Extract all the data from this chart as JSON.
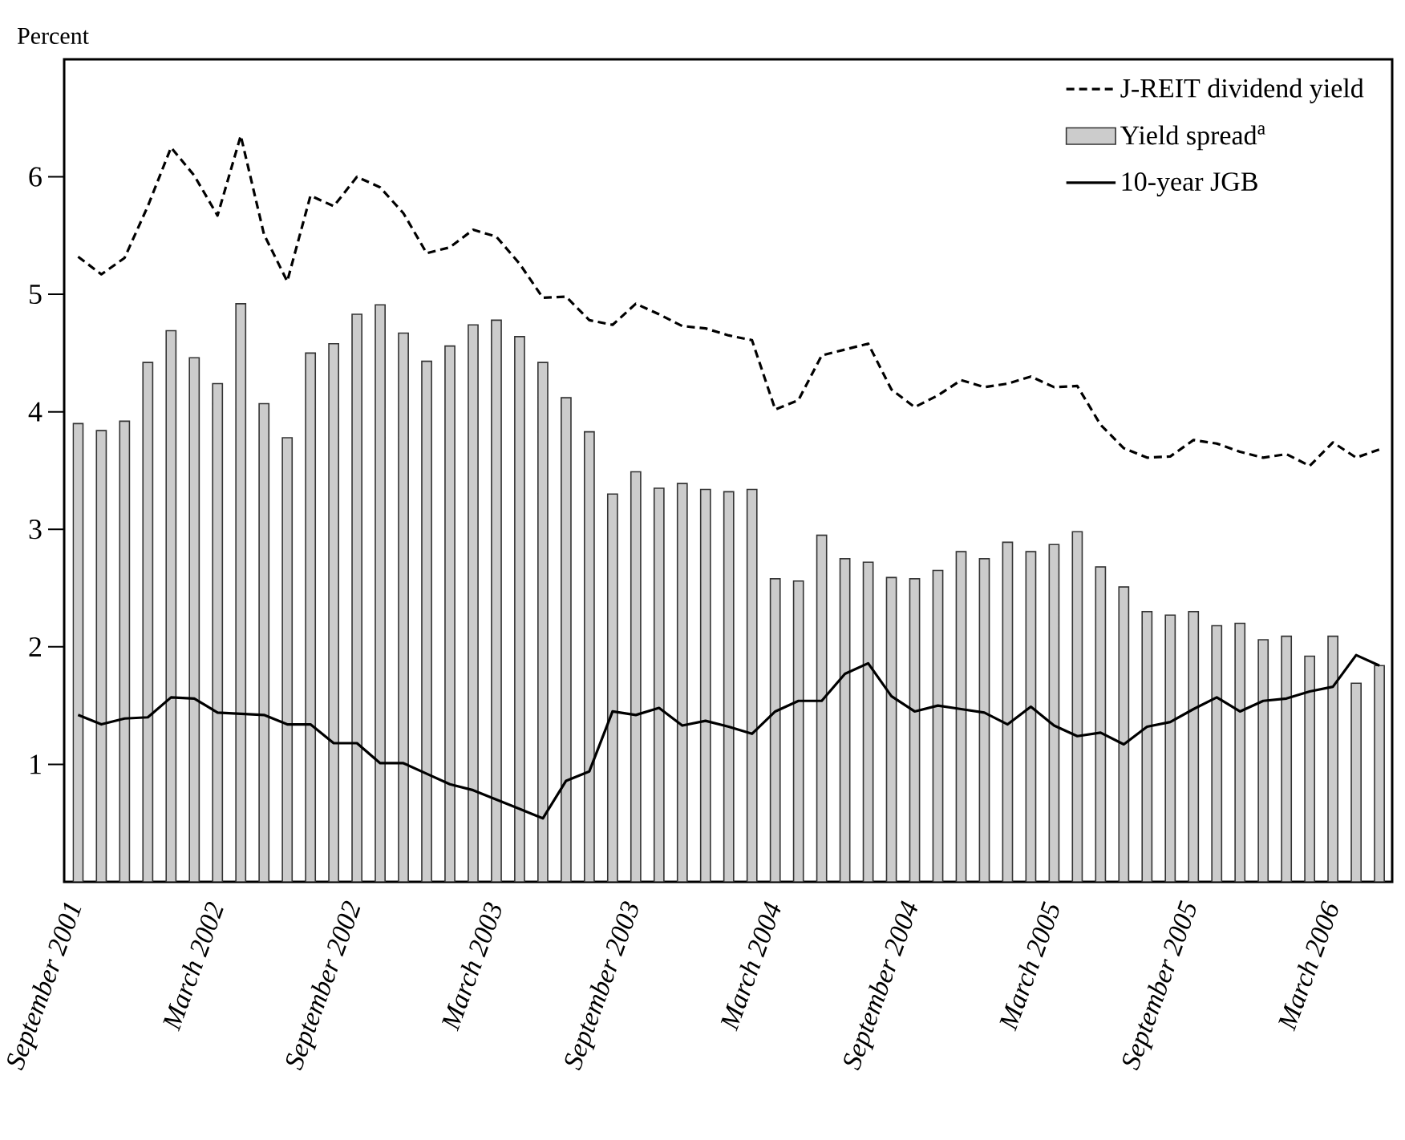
{
  "chart_data": {
    "type": "bar",
    "ylabel": "Percent",
    "categories": [
      "September 2001",
      null,
      null,
      null,
      null,
      null,
      "March 2002",
      null,
      null,
      null,
      null,
      null,
      "September 2002",
      null,
      null,
      null,
      null,
      null,
      "March 2003",
      null,
      null,
      null,
      null,
      null,
      "September 2003",
      null,
      null,
      null,
      null,
      null,
      "March 2004",
      null,
      null,
      null,
      null,
      null,
      "September 2004",
      null,
      null,
      null,
      null,
      null,
      "March 2005",
      null,
      null,
      null,
      null,
      null,
      "September 2005",
      null,
      null,
      null,
      null,
      null,
      "March 2006",
      null,
      null
    ],
    "series": [
      {
        "name": "J-REIT dividend yield",
        "type": "line",
        "line_style": "dashed",
        "color": "#000000",
        "values": [
          5.32,
          5.17,
          5.31,
          5.75,
          6.25,
          6.01,
          5.67,
          6.35,
          5.51,
          5.11,
          5.84,
          5.75,
          6.0,
          5.91,
          5.69,
          5.35,
          5.4,
          5.55,
          5.49,
          5.26,
          4.97,
          4.98,
          4.78,
          4.74,
          4.92,
          4.83,
          4.73,
          4.71,
          4.65,
          4.61,
          4.02,
          4.1,
          4.48,
          4.53,
          4.58,
          4.19,
          4.04,
          4.14,
          4.27,
          4.21,
          4.24,
          4.3,
          4.21,
          4.22,
          3.89,
          3.69,
          3.61,
          3.62,
          3.76,
          3.73,
          3.66,
          3.61,
          3.64,
          3.54,
          3.74,
          3.61,
          3.68
        ]
      },
      {
        "name": "Yield spread$^{a}$",
        "color": "#cccccc",
        "values": [
          3.9,
          3.84,
          3.92,
          4.42,
          4.69,
          4.46,
          4.24,
          4.92,
          4.07,
          3.78,
          4.5,
          4.58,
          4.83,
          4.91,
          4.67,
          4.43,
          4.56,
          4.74,
          4.78,
          4.64,
          4.42,
          4.12,
          3.83,
          3.3,
          3.49,
          3.35,
          3.39,
          3.34,
          3.32,
          3.34,
          2.58,
          2.56,
          2.95,
          2.75,
          2.72,
          2.59,
          2.58,
          2.65,
          2.81,
          2.75,
          2.89,
          2.81,
          2.87,
          2.98,
          2.68,
          2.51,
          2.3,
          2.27,
          2.3,
          2.18,
          2.2,
          2.06,
          2.09,
          1.92,
          2.09,
          1.69,
          1.84
        ]
      },
      {
        "name": "10-year JGB",
        "type": "line",
        "line_style": "solid",
        "color": "#000000",
        "values": [
          1.42,
          1.34,
          1.39,
          1.4,
          1.57,
          1.56,
          1.44,
          1.43,
          1.42,
          1.34,
          1.34,
          1.18,
          1.18,
          1.01,
          1.01,
          0.92,
          0.83,
          0.78,
          0.7,
          0.62,
          0.54,
          0.86,
          0.94,
          1.45,
          1.42,
          1.48,
          1.33,
          1.37,
          1.32,
          1.26,
          1.45,
          1.54,
          1.54,
          1.77,
          1.86,
          1.58,
          1.45,
          1.5,
          1.47,
          1.44,
          1.34,
          1.49,
          1.33,
          1.24,
          1.27,
          1.17,
          1.32,
          1.36,
          1.47,
          1.57,
          1.45,
          1.54,
          1.56,
          1.62,
          1.66,
          1.93,
          1.84
        ]
      }
    ],
    "ylim": [
      0,
      7
    ],
    "yticks": [
      1,
      2,
      3,
      4,
      5,
      6
    ],
    "legend": "top right",
    "marker": "none"
  }
}
